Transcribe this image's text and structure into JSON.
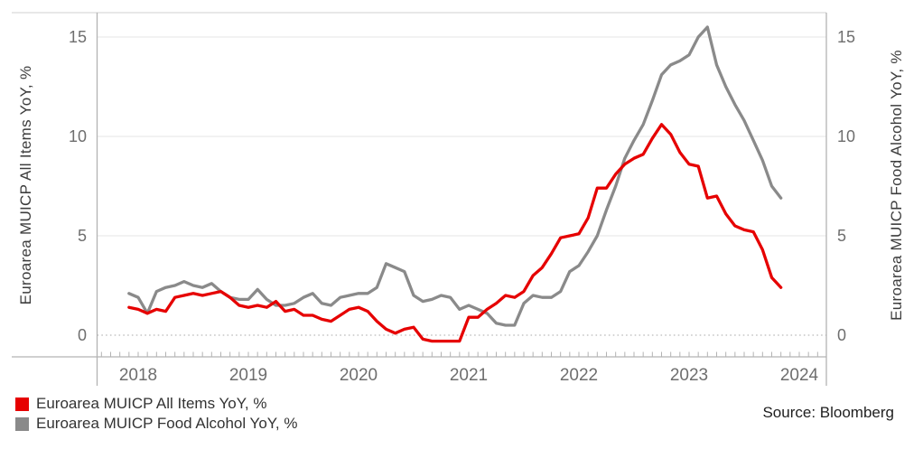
{
  "chart_data": {
    "type": "line",
    "frequency": "monthly",
    "x_start": "2017-12",
    "x_end": "2023-11",
    "x_tick_labels": [
      "2018",
      "2019",
      "2020",
      "2021",
      "2022",
      "2023",
      "2024"
    ],
    "left_axis": {
      "label": "Euroarea MUICP All Items YoY, %",
      "ticks": [
        0,
        5,
        10,
        15
      ]
    },
    "right_axis": {
      "label": "Euroarea MUICP Food Alcohol YoY, %",
      "ticks": [
        0,
        5,
        10,
        15
      ]
    },
    "ylim": [
      -1.1,
      16.3
    ],
    "grid": {
      "solid_gridlines_at": [
        5,
        10,
        15
      ],
      "dotted_gridline_at": 0
    },
    "legend_position": "bottom-left",
    "series": [
      {
        "name": "Euroarea MUICP All Items YoY, %",
        "color": "#e60000",
        "values": [
          1.4,
          1.3,
          1.1,
          1.3,
          1.2,
          1.9,
          2.0,
          2.1,
          2.0,
          2.1,
          2.2,
          1.9,
          1.5,
          1.4,
          1.5,
          1.4,
          1.7,
          1.2,
          1.3,
          1.0,
          1.0,
          0.8,
          0.7,
          1.0,
          1.3,
          1.4,
          1.2,
          0.7,
          0.3,
          0.1,
          0.3,
          0.4,
          -0.2,
          -0.3,
          -0.3,
          -0.3,
          -0.3,
          0.9,
          0.9,
          1.3,
          1.6,
          2.0,
          1.9,
          2.2,
          3.0,
          3.4,
          4.1,
          4.9,
          5.0,
          5.1,
          5.9,
          7.4,
          7.4,
          8.1,
          8.6,
          8.9,
          9.1,
          9.9,
          10.6,
          10.1,
          9.2,
          8.6,
          8.5,
          6.9,
          7.0,
          6.1,
          5.5,
          5.3,
          5.2,
          4.3,
          2.9,
          2.4
        ]
      },
      {
        "name": "Euroarea MUICP Food Alcohol YoY, %",
        "color": "#8a8a8a",
        "values": [
          2.1,
          1.9,
          1.1,
          2.2,
          2.4,
          2.5,
          2.7,
          2.5,
          2.4,
          2.6,
          2.2,
          1.9,
          1.8,
          1.8,
          2.3,
          1.8,
          1.5,
          1.5,
          1.6,
          1.9,
          2.1,
          1.6,
          1.5,
          1.9,
          2.0,
          2.1,
          2.1,
          2.4,
          3.6,
          3.4,
          3.2,
          2.0,
          1.7,
          1.8,
          2.0,
          1.9,
          1.3,
          1.5,
          1.3,
          1.1,
          0.6,
          0.5,
          0.5,
          1.6,
          2.0,
          1.9,
          1.9,
          2.2,
          3.2,
          3.5,
          4.2,
          5.0,
          6.3,
          7.5,
          8.9,
          9.8,
          10.6,
          11.8,
          13.1,
          13.6,
          13.8,
          14.1,
          15.0,
          15.5,
          13.6,
          12.5,
          11.6,
          10.8,
          9.8,
          8.8,
          7.5,
          6.9
        ]
      }
    ]
  },
  "legend": {
    "items": [
      {
        "label": "Euroarea MUICP All Items YoY, %",
        "color": "#e60000"
      },
      {
        "label": "Euroarea MUICP Food Alcohol YoY, %",
        "color": "#8a8a8a"
      }
    ]
  },
  "source": "Source: Bloomberg",
  "colors": {
    "axis": "#b3b3b3",
    "gridline": "#ebebeb",
    "zero_line": "#a9a9a9",
    "top_border": "#d9d9d9",
    "tick_label": "#6e6e6e"
  }
}
